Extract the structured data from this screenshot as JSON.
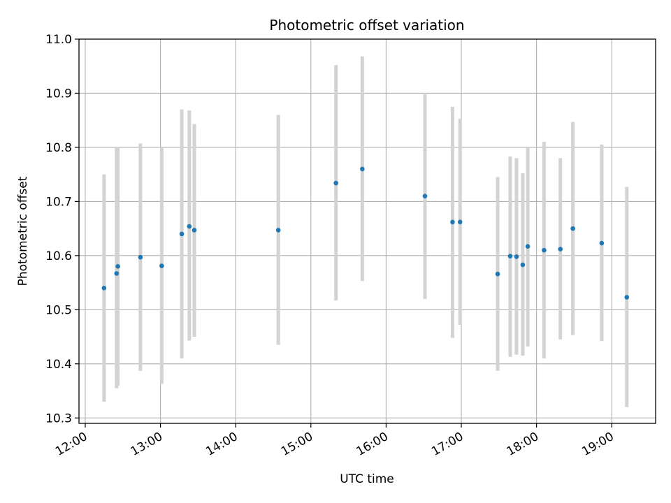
{
  "chart_data": {
    "type": "scatter",
    "title": "Photometric offset variation",
    "xlabel": "UTC time",
    "ylabel": "Photometric offset",
    "x_ticks": [
      "12:00",
      "13:00",
      "14:00",
      "15:00",
      "16:00",
      "17:00",
      "18:00",
      "19:00"
    ],
    "y_ticks": [
      "10.3",
      "10.4",
      "10.5",
      "10.6",
      "10.7",
      "10.8",
      "10.9",
      "11.0"
    ],
    "xlim": [
      "11:55",
      "19:35"
    ],
    "ylim": [
      10.29,
      11.0
    ],
    "grid": true,
    "colors": {
      "point": "#1f77b4",
      "errorbar": "#d3d3d3",
      "grid": "#b0b0b0"
    },
    "points": [
      {
        "x": "12:15",
        "y": 10.54,
        "ylow": 10.33,
        "yhigh": 10.75
      },
      {
        "x": "12:25",
        "y": 10.567,
        "ylow": 10.355,
        "yhigh": 10.8
      },
      {
        "x": "12:26",
        "y": 10.58,
        "ylow": 10.36,
        "yhigh": 10.8
      },
      {
        "x": "12:44",
        "y": 10.597,
        "ylow": 10.387,
        "yhigh": 10.807
      },
      {
        "x": "13:01",
        "y": 10.581,
        "ylow": 10.363,
        "yhigh": 10.8
      },
      {
        "x": "13:17",
        "y": 10.64,
        "ylow": 10.41,
        "yhigh": 10.87
      },
      {
        "x": "13:23",
        "y": 10.654,
        "ylow": 10.443,
        "yhigh": 10.868
      },
      {
        "x": "13:27",
        "y": 10.647,
        "ylow": 10.45,
        "yhigh": 10.843
      },
      {
        "x": "14:34",
        "y": 10.647,
        "ylow": 10.435,
        "yhigh": 10.86
      },
      {
        "x": "15:20",
        "y": 10.734,
        "ylow": 10.517,
        "yhigh": 10.952
      },
      {
        "x": "15:41",
        "y": 10.76,
        "ylow": 10.553,
        "yhigh": 10.968
      },
      {
        "x": "16:31",
        "y": 10.71,
        "ylow": 10.52,
        "yhigh": 10.898
      },
      {
        "x": "16:53",
        "y": 10.662,
        "ylow": 10.448,
        "yhigh": 10.875
      },
      {
        "x": "16:59",
        "y": 10.662,
        "ylow": 10.472,
        "yhigh": 10.853
      },
      {
        "x": "17:29",
        "y": 10.566,
        "ylow": 10.387,
        "yhigh": 10.745
      },
      {
        "x": "17:39",
        "y": 10.599,
        "ylow": 10.413,
        "yhigh": 10.783
      },
      {
        "x": "17:44",
        "y": 10.598,
        "ylow": 10.417,
        "yhigh": 10.78
      },
      {
        "x": "17:49",
        "y": 10.583,
        "ylow": 10.415,
        "yhigh": 10.752
      },
      {
        "x": "17:53",
        "y": 10.617,
        "ylow": 10.432,
        "yhigh": 10.8
      },
      {
        "x": "18:06",
        "y": 10.61,
        "ylow": 10.41,
        "yhigh": 10.81
      },
      {
        "x": "18:19",
        "y": 10.612,
        "ylow": 10.445,
        "yhigh": 10.78
      },
      {
        "x": "18:29",
        "y": 10.65,
        "ylow": 10.453,
        "yhigh": 10.847
      },
      {
        "x": "18:52",
        "y": 10.623,
        "ylow": 10.442,
        "yhigh": 10.805
      },
      {
        "x": "19:12",
        "y": 10.523,
        "ylow": 10.32,
        "yhigh": 10.727
      }
    ]
  }
}
